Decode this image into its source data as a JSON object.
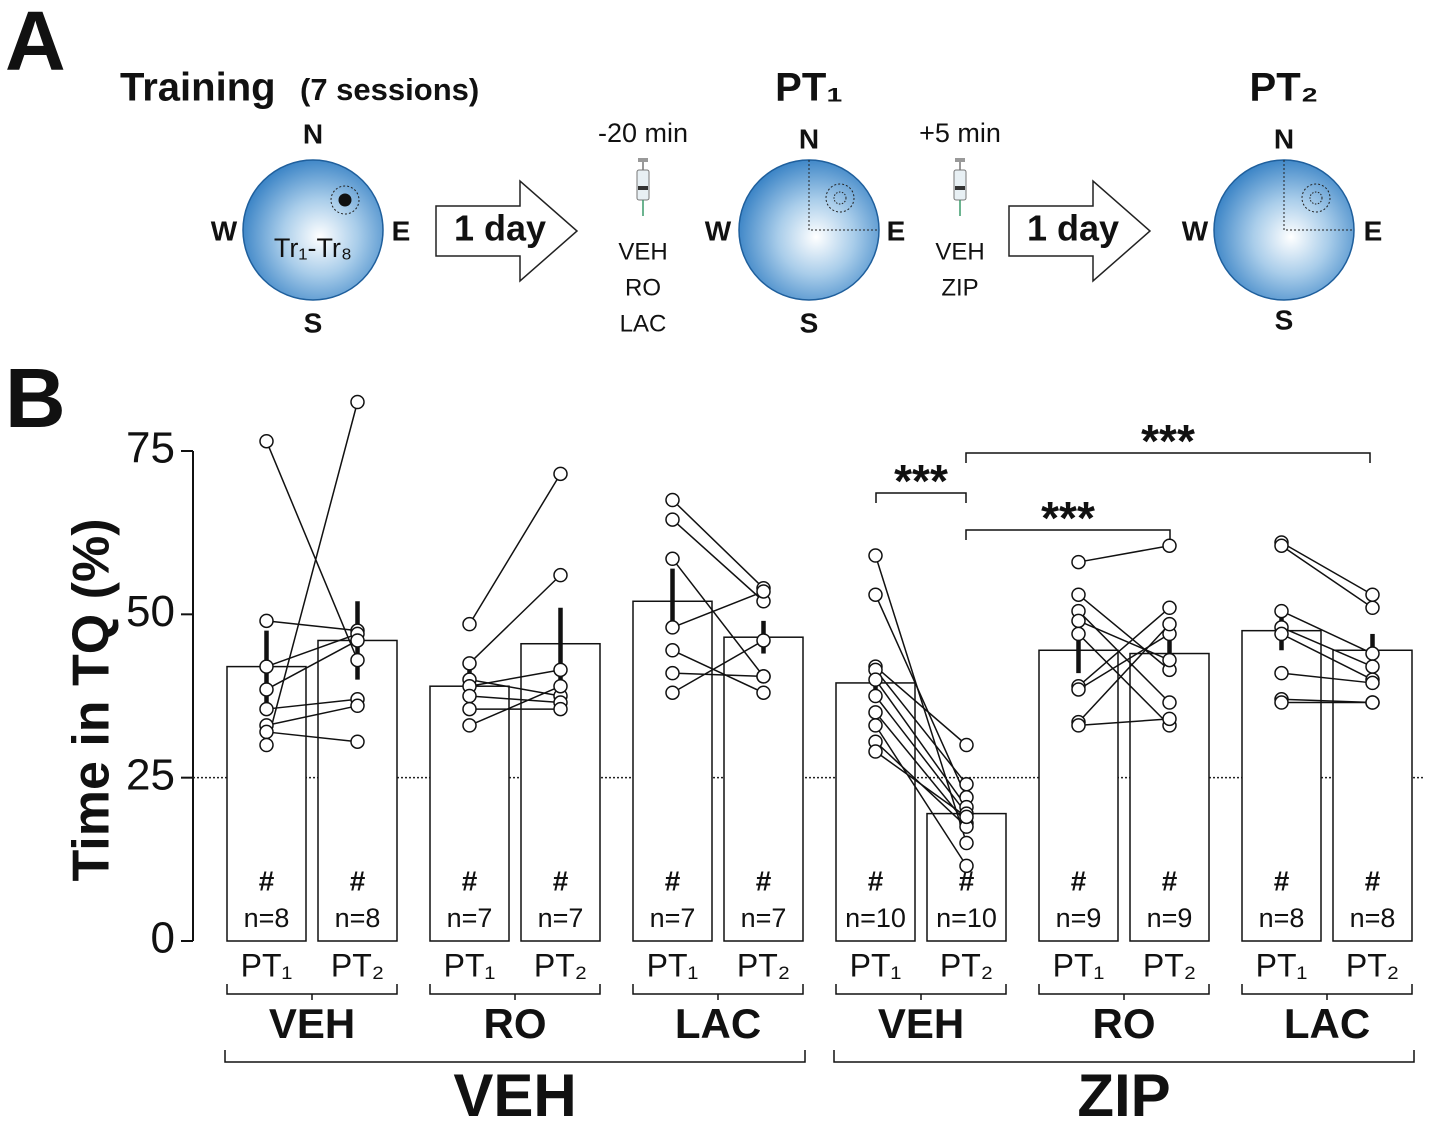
{
  "panel_a": {
    "label": "A",
    "stages": [
      {
        "title": "Training",
        "subtitle": "(7 sessions)",
        "compass": {
          "n": "N",
          "w": "W",
          "e": "E",
          "s": "S"
        },
        "circle_label": "Tr₁-Tr₈"
      },
      {
        "title": "PT₁",
        "compass": {
          "n": "N",
          "w": "W",
          "e": "E",
          "s": "S"
        }
      },
      {
        "title": "PT₂",
        "compass": {
          "n": "N",
          "w": "W",
          "e": "E",
          "s": "S"
        }
      }
    ],
    "arrows": [
      {
        "label": "1 day"
      },
      {
        "label": "1 day"
      }
    ],
    "injections": [
      {
        "time": "-20 min",
        "drugs": [
          "VEH",
          "RO",
          "LAC"
        ]
      },
      {
        "time": "+5 min",
        "drugs": [
          "VEH",
          "ZIP"
        ]
      }
    ]
  },
  "panel_b_label": "B",
  "chart_data": {
    "type": "bar",
    "ylabel": "Time in TQ (%)",
    "ylim": [
      0,
      75
    ],
    "yticks": [
      0,
      25,
      50,
      75
    ],
    "reference_line": 25,
    "annotations": [
      "***",
      "***",
      "***"
    ],
    "supergroups": [
      {
        "name": "VEH",
        "groups": [
          {
            "name": "VEH",
            "bars": [
              {
                "category": "PT₁",
                "value": 42,
                "error": 5.5,
                "marker": "#",
                "n_label": "n=8",
                "points": [
                  76.5,
                  49,
                  42,
                  38.5,
                  35.5,
                  33,
                  32,
                  30
                ]
              },
              {
                "category": "PT₂",
                "value": 46,
                "error": 6,
                "marker": "#",
                "n_label": "n=8",
                "points": [
                  43,
                  47.5,
                  47,
                  46,
                  37,
                  36,
                  30.5,
                  82.5
                ]
              }
            ]
          },
          {
            "name": "RO",
            "bars": [
              {
                "category": "PT₁",
                "value": 39,
                "error": 2.5,
                "marker": "#",
                "n_label": "n=7",
                "points": [
                  48.5,
                  42.5,
                  40,
                  39,
                  37.5,
                  35.5,
                  33
                ]
              },
              {
                "category": "PT₂",
                "value": 45.5,
                "error": 5.5,
                "marker": "#",
                "n_label": "n=7",
                "points": [
                  71.5,
                  56,
                  37.5,
                  41.5,
                  36.5,
                  35.5,
                  39
                ]
              }
            ]
          },
          {
            "name": "LAC",
            "bars": [
              {
                "category": "PT₁",
                "value": 52,
                "error": 5,
                "marker": "#",
                "n_label": "n=7",
                "points": [
                  67.5,
                  64.5,
                  58.5,
                  48,
                  44.5,
                  41,
                  38
                ]
              },
              {
                "category": "PT₂",
                "value": 46.5,
                "error": 2.5,
                "marker": "#",
                "n_label": "n=7",
                "points": [
                  54,
                  52,
                  40.5,
                  53.5,
                  38,
                  40.5,
                  46
                ]
              }
            ]
          }
        ]
      },
      {
        "name": "ZIP",
        "groups": [
          {
            "name": "VEH",
            "bars": [
              {
                "category": "PT₁",
                "value": 39.5,
                "error": 2.5,
                "marker": "#",
                "n_label": "n=10",
                "points": [
                  59,
                  53,
                  42,
                  41.5,
                  40,
                  37.5,
                  35,
                  33,
                  30.5,
                  29
                ]
              },
              {
                "category": "PT₂",
                "value": 19.5,
                "error": 1.5,
                "marker": "#",
                "n_label": "n=10",
                "points": [
                  15,
                  22,
                  30,
                  24,
                  20.5,
                  19.5,
                  18,
                  11.5,
                  17.5,
                  19
                ]
              }
            ]
          },
          {
            "name": "RO",
            "bars": [
              {
                "category": "PT₁",
                "value": 44.5,
                "error": 3.5,
                "marker": "#",
                "n_label": "n=9",
                "points": [
                  58,
                  53,
                  50.5,
                  49,
                  47,
                  39,
                  38.5,
                  33.5,
                  33
                ]
              },
              {
                "category": "PT₂",
                "value": 44,
                "error": 3.5,
                "marker": "#",
                "n_label": "n=9",
                "points": [
                  60.5,
                  41.5,
                  36.5,
                  43,
                  33,
                  51,
                  47,
                  48.5,
                  34
                ]
              }
            ]
          },
          {
            "name": "LAC",
            "bars": [
              {
                "category": "PT₁",
                "value": 47.5,
                "error": 3,
                "marker": "#",
                "n_label": "n=8",
                "points": [
                  61,
                  60.5,
                  50.5,
                  48,
                  47,
                  41,
                  37,
                  36.5
                ]
              },
              {
                "category": "PT₂",
                "value": 44.5,
                "error": 2.5,
                "marker": "#",
                "n_label": "n=8",
                "points": [
                  53,
                  51,
                  44,
                  42,
                  40,
                  39.5,
                  36.5,
                  36.5
                ]
              }
            ]
          }
        ]
      }
    ]
  }
}
